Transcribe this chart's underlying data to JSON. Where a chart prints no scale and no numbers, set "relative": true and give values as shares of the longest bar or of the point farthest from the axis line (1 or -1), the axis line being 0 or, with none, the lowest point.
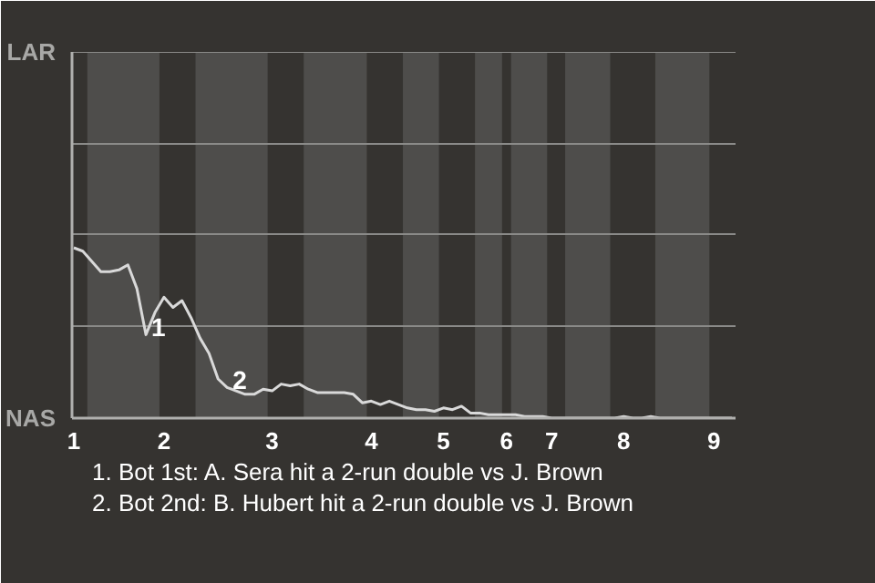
{
  "chart_data": {
    "type": "line",
    "relative": true,
    "categories": [
      "1",
      null,
      null,
      null,
      null,
      null,
      null,
      null,
      null,
      null,
      "2",
      null,
      null,
      null,
      null,
      null,
      null,
      null,
      null,
      null,
      null,
      null,
      "3",
      null,
      null,
      null,
      null,
      null,
      null,
      null,
      null,
      null,
      null,
      "4",
      null,
      null,
      null,
      null,
      null,
      null,
      null,
      "5",
      null,
      null,
      null,
      null,
      null,
      null,
      "6",
      null,
      null,
      null,
      null,
      "7",
      null,
      null,
      null,
      null,
      null,
      null,
      null,
      "8",
      null,
      null,
      null,
      null,
      null,
      null,
      null,
      null,
      null,
      "9",
      null,
      null
    ],
    "values": [
      1.0,
      0.98,
      0.92,
      0.86,
      0.86,
      0.87,
      0.9,
      0.76,
      0.49,
      0.62,
      0.71,
      0.65,
      0.69,
      0.59,
      0.47,
      0.38,
      0.23,
      0.18,
      0.16,
      0.14,
      0.14,
      0.17,
      0.16,
      0.2,
      0.19,
      0.2,
      0.17,
      0.15,
      0.15,
      0.15,
      0.15,
      0.14,
      0.09,
      0.1,
      0.08,
      0.1,
      0.08,
      0.06,
      0.05,
      0.05,
      0.04,
      0.06,
      0.05,
      0.07,
      0.03,
      0.03,
      0.02,
      0.02,
      0.02,
      0.02,
      0.01,
      0.01,
      0.01,
      0.0,
      0.0,
      0.0,
      0.0,
      0.0,
      0.0,
      0.0,
      0.0,
      0.01,
      0.0,
      0.0,
      0.01,
      0.0,
      0.0,
      0.0,
      0.0,
      0.0,
      0.0,
      0.0,
      0.0,
      0.0
    ],
    "color": "#d9d9d9",
    "ref_lines": [
      {
        "axis": "y",
        "value": 0.54,
        "color": "#8a8a88"
      },
      {
        "axis": "y",
        "value": 1.08,
        "color": "#8a8a88"
      },
      {
        "axis": "y",
        "value": 1.61,
        "color": "#8a8a88"
      },
      {
        "axis": "y",
        "value": 2.15,
        "color": "#8a8a88"
      }
    ],
    "annotations": [
      "LAR",
      "NAS",
      {
        "text": "1",
        "y": 0.49
      },
      {
        "text": "2",
        "y": 0.18
      },
      "1. Bot 1st: A. Sera hit a 2-run double vs J. Brown",
      "2. Bot 2nd: B. Hubert hit a 2-run double vs J. Brown"
    ]
  }
}
